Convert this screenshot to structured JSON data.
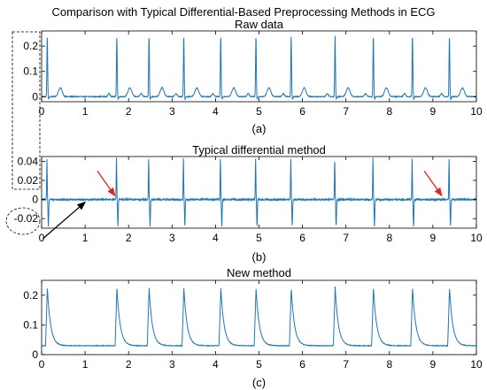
{
  "title": "Comparison with Typical Differential-Based Preprocessing Methods in ECG",
  "colors": {
    "signal": "#1f77b4",
    "arrow_red": "#e8221b",
    "arrow_black": "#000000"
  },
  "chart_data": [
    {
      "type": "line",
      "title": "Raw data",
      "caption": "(a)",
      "xlim": [
        0,
        10
      ],
      "ylim": [
        -0.02,
        0.26
      ],
      "xticks": [
        "0",
        "1",
        "2",
        "3",
        "4",
        "5",
        "6",
        "7",
        "8",
        "9",
        "10"
      ],
      "yticks": [
        {
          "value": 0.2,
          "label": "0.2"
        },
        {
          "value": 0.1,
          "label": "0.1"
        },
        {
          "value": 0,
          "label": "0"
        }
      ],
      "grid": false,
      "signal": {
        "baseline": 0.0,
        "r_peaks": [
          0.13,
          1.73,
          2.47,
          3.27,
          4.12,
          4.93,
          5.74,
          6.75,
          7.63,
          8.53,
          9.38
        ],
        "r_amplitude": 0.24,
        "s_depth": -0.01,
        "t_amplitude": 0.035,
        "p_amplitude": 0.012,
        "noise": 0.003
      }
    },
    {
      "type": "line",
      "title": "Typical differential method",
      "caption": "(b)",
      "xlim": [
        0,
        10
      ],
      "ylim": [
        -0.03,
        0.045
      ],
      "xticks": [
        "0",
        "1",
        "2",
        "3",
        "4",
        "5",
        "6",
        "7",
        "8",
        "9",
        "10"
      ],
      "yticks": [
        {
          "value": 0.04,
          "label": "0.04"
        },
        {
          "value": 0.02,
          "label": "0.02"
        },
        {
          "value": 0,
          "label": "0"
        },
        {
          "value": -0.02,
          "label": "-0.02"
        }
      ],
      "grid": false,
      "signal": {
        "baseline": 0.0,
        "r_peaks": [
          0.13,
          1.73,
          2.47,
          3.27,
          4.12,
          4.93,
          5.74,
          6.75,
          7.63,
          8.53,
          9.38
        ],
        "up_amplitude": 0.043,
        "down_amplitude": -0.028,
        "noise": 0.0018
      },
      "annotations": [
        {
          "type": "arrow",
          "color": "red",
          "from": [
            1.28,
            0.03
          ],
          "to": [
            1.7,
            0.003
          ]
        },
        {
          "type": "arrow",
          "color": "red",
          "from": [
            8.8,
            0.03
          ],
          "to": [
            9.22,
            0.003
          ]
        },
        {
          "type": "arrow",
          "color": "black",
          "from": [
            0.03,
            -0.041
          ],
          "to": [
            1.02,
            -0.002
          ]
        },
        {
          "type": "box",
          "style": "dashed",
          "from": [
            -0.62,
            0.09
          ],
          "to": [
            -0.02,
            0.21
          ],
          "note": "links scale of panel (a) to panel (b)"
        },
        {
          "type": "ellipse",
          "style": "dashed",
          "center": [
            -0.45,
            -0.024
          ]
        }
      ]
    },
    {
      "type": "line",
      "title": "New method",
      "caption": "(c)",
      "xlim": [
        0,
        10
      ],
      "ylim": [
        0,
        0.25
      ],
      "xticks": [
        "0",
        "1",
        "2",
        "3",
        "4",
        "5",
        "6",
        "7",
        "8",
        "9",
        "10"
      ],
      "yticks": [
        {
          "value": 0.2,
          "label": "0.2"
        },
        {
          "value": 0.1,
          "label": "0.1"
        },
        {
          "value": 0,
          "label": "0"
        }
      ],
      "grid": false,
      "signal": {
        "baseline": 0.03,
        "r_peaks": [
          0.13,
          1.73,
          2.47,
          3.27,
          4.12,
          4.93,
          5.74,
          6.75,
          7.63,
          8.53,
          9.38
        ],
        "peak_value": 0.23,
        "noise": 0.002
      }
    }
  ]
}
